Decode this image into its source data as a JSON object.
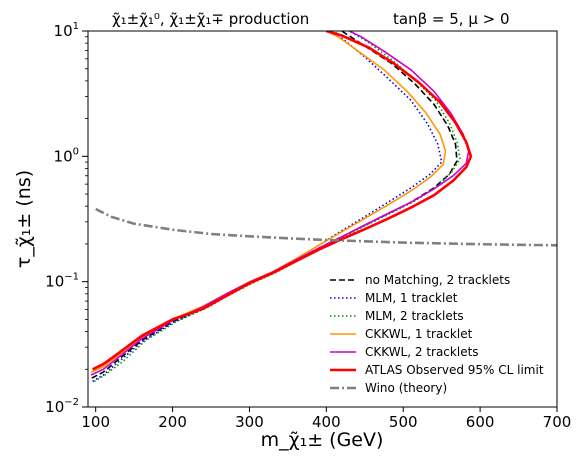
{
  "chart_data": {
    "type": "line",
    "title_left": "χ̃₁±χ̃₁⁰, χ̃₁±χ̃₁∓ production",
    "title_right": "tanβ = 5, μ > 0",
    "xlabel": "m_χ̃₁± (GeV)",
    "ylabel": "τ_χ̃₁± (ns)",
    "xlim": [
      90,
      700
    ],
    "ylim": [
      0.01,
      10
    ],
    "y_scale": "log",
    "x_ticks": [
      "100",
      "200",
      "300",
      "400",
      "500",
      "600",
      "700"
    ],
    "y_ticks": [
      "10^-2",
      "10^-1",
      "10^0",
      "10^1"
    ],
    "legend_position": "lower-right",
    "series": [
      {
        "name": "no Matching, 2 tracklets",
        "color": "#000000",
        "dash": "dashed",
        "width": 1.6,
        "points": [
          [
            95,
            0.017
          ],
          [
            110,
            0.019
          ],
          [
            130,
            0.024
          ],
          [
            160,
            0.034
          ],
          [
            200,
            0.048
          ],
          [
            240,
            0.062
          ],
          [
            270,
            0.079
          ],
          [
            300,
            0.098
          ],
          [
            330,
            0.118
          ],
          [
            360,
            0.148
          ],
          [
            390,
            0.185
          ],
          [
            420,
            0.228
          ],
          [
            450,
            0.282
          ],
          [
            480,
            0.348
          ],
          [
            510,
            0.43
          ],
          [
            540,
            0.56
          ],
          [
            560,
            0.72
          ],
          [
            570,
            0.92
          ],
          [
            568,
            1.25
          ],
          [
            558,
            1.75
          ],
          [
            540,
            2.6
          ],
          [
            515,
            3.8
          ],
          [
            485,
            5.5
          ],
          [
            450,
            7.6
          ],
          [
            420,
            10
          ]
        ]
      },
      {
        "name": "MLM, 1 tracklet",
        "color": "#0000ee",
        "dash": "dotted",
        "width": 1.6,
        "points": [
          [
            96,
            0.016
          ],
          [
            110,
            0.018
          ],
          [
            130,
            0.023
          ],
          [
            160,
            0.033
          ],
          [
            200,
            0.047
          ],
          [
            240,
            0.061
          ],
          [
            270,
            0.078
          ],
          [
            300,
            0.097
          ],
          [
            330,
            0.118
          ],
          [
            360,
            0.15
          ],
          [
            390,
            0.195
          ],
          [
            420,
            0.255
          ],
          [
            450,
            0.33
          ],
          [
            480,
            0.43
          ],
          [
            510,
            0.56
          ],
          [
            535,
            0.72
          ],
          [
            550,
            0.9
          ],
          [
            545,
            1.25
          ],
          [
            532,
            1.8
          ],
          [
            510,
            2.8
          ],
          [
            480,
            4.2
          ],
          [
            450,
            6.2
          ],
          [
            420,
            8.8
          ],
          [
            410,
            10
          ]
        ]
      },
      {
        "name": "MLM, 2 tracklets",
        "color": "#009900",
        "dash": "dotted",
        "width": 1.6,
        "points": [
          [
            98,
            0.016
          ],
          [
            112,
            0.018
          ],
          [
            135,
            0.023
          ],
          [
            165,
            0.034
          ],
          [
            205,
            0.048
          ],
          [
            245,
            0.062
          ],
          [
            275,
            0.079
          ],
          [
            305,
            0.098
          ],
          [
            335,
            0.119
          ],
          [
            365,
            0.149
          ],
          [
            395,
            0.187
          ],
          [
            425,
            0.232
          ],
          [
            455,
            0.288
          ],
          [
            485,
            0.355
          ],
          [
            515,
            0.44
          ],
          [
            545,
            0.58
          ],
          [
            563,
            0.75
          ],
          [
            574,
            0.95
          ],
          [
            570,
            1.3
          ],
          [
            560,
            1.85
          ],
          [
            542,
            2.8
          ],
          [
            515,
            4.1
          ],
          [
            485,
            5.9
          ],
          [
            455,
            8.1
          ],
          [
            430,
            10
          ]
        ]
      },
      {
        "name": "CKKWL, 1 tracklet",
        "color": "#ff9900",
        "dash": "solid",
        "width": 1.6,
        "points": [
          [
            94,
            0.019
          ],
          [
            110,
            0.021
          ],
          [
            130,
            0.026
          ],
          [
            160,
            0.036
          ],
          [
            200,
            0.05
          ],
          [
            240,
            0.064
          ],
          [
            270,
            0.08
          ],
          [
            300,
            0.1
          ],
          [
            330,
            0.12
          ],
          [
            360,
            0.152
          ],
          [
            390,
            0.195
          ],
          [
            420,
            0.25
          ],
          [
            450,
            0.32
          ],
          [
            480,
            0.41
          ],
          [
            510,
            0.53
          ],
          [
            535,
            0.68
          ],
          [
            552,
            0.86
          ],
          [
            555,
            1.1
          ],
          [
            548,
            1.5
          ],
          [
            530,
            2.2
          ],
          [
            505,
            3.3
          ],
          [
            475,
            4.9
          ],
          [
            440,
            7.0
          ],
          [
            415,
            9.0
          ],
          [
            400,
            10
          ]
        ]
      },
      {
        "name": "CKKWL, 2 tracklets",
        "color": "#cc00cc",
        "dash": "solid",
        "width": 1.6,
        "points": [
          [
            94,
            0.018
          ],
          [
            110,
            0.02
          ],
          [
            130,
            0.025
          ],
          [
            160,
            0.035
          ],
          [
            200,
            0.049
          ],
          [
            240,
            0.063
          ],
          [
            270,
            0.08
          ],
          [
            300,
            0.099
          ],
          [
            330,
            0.119
          ],
          [
            360,
            0.149
          ],
          [
            390,
            0.185
          ],
          [
            420,
            0.228
          ],
          [
            450,
            0.283
          ],
          [
            480,
            0.35
          ],
          [
            510,
            0.43
          ],
          [
            540,
            0.55
          ],
          [
            565,
            0.7
          ],
          [
            582,
            0.88
          ],
          [
            585,
            1.1
          ],
          [
            578,
            1.5
          ],
          [
            562,
            2.2
          ],
          [
            540,
            3.3
          ],
          [
            510,
            4.9
          ],
          [
            475,
            6.9
          ],
          [
            445,
            9.0
          ],
          [
            430,
            10
          ]
        ]
      },
      {
        "name": "ATLAS Observed 95% CL limit",
        "color": "#ff0000",
        "dash": "solid",
        "width": 2.6,
        "points": [
          [
            96,
            0.02
          ],
          [
            110,
            0.022
          ],
          [
            130,
            0.027
          ],
          [
            160,
            0.037
          ],
          [
            200,
            0.05
          ],
          [
            240,
            0.061
          ],
          [
            270,
            0.077
          ],
          [
            300,
            0.097
          ],
          [
            330,
            0.117
          ],
          [
            360,
            0.145
          ],
          [
            390,
            0.18
          ],
          [
            420,
            0.218
          ],
          [
            450,
            0.262
          ],
          [
            480,
            0.318
          ],
          [
            510,
            0.39
          ],
          [
            540,
            0.49
          ],
          [
            565,
            0.64
          ],
          [
            582,
            0.82
          ],
          [
            588,
            1.0
          ],
          [
            582,
            1.3
          ],
          [
            568,
            1.85
          ],
          [
            548,
            2.7
          ],
          [
            520,
            3.9
          ],
          [
            488,
            5.5
          ],
          [
            455,
            7.4
          ],
          [
            420,
            9.2
          ],
          [
            400,
            10
          ]
        ]
      },
      {
        "name": "Wino (theory)",
        "color": "#808080",
        "dash": "dashdot",
        "width": 2.6,
        "points": [
          [
            100,
            0.38
          ],
          [
            120,
            0.33
          ],
          [
            150,
            0.29
          ],
          [
            200,
            0.26
          ],
          [
            250,
            0.24
          ],
          [
            300,
            0.23
          ],
          [
            350,
            0.222
          ],
          [
            400,
            0.215
          ],
          [
            450,
            0.21
          ],
          [
            500,
            0.205
          ],
          [
            550,
            0.202
          ],
          [
            600,
            0.199
          ],
          [
            650,
            0.197
          ],
          [
            700,
            0.195
          ]
        ]
      }
    ]
  }
}
